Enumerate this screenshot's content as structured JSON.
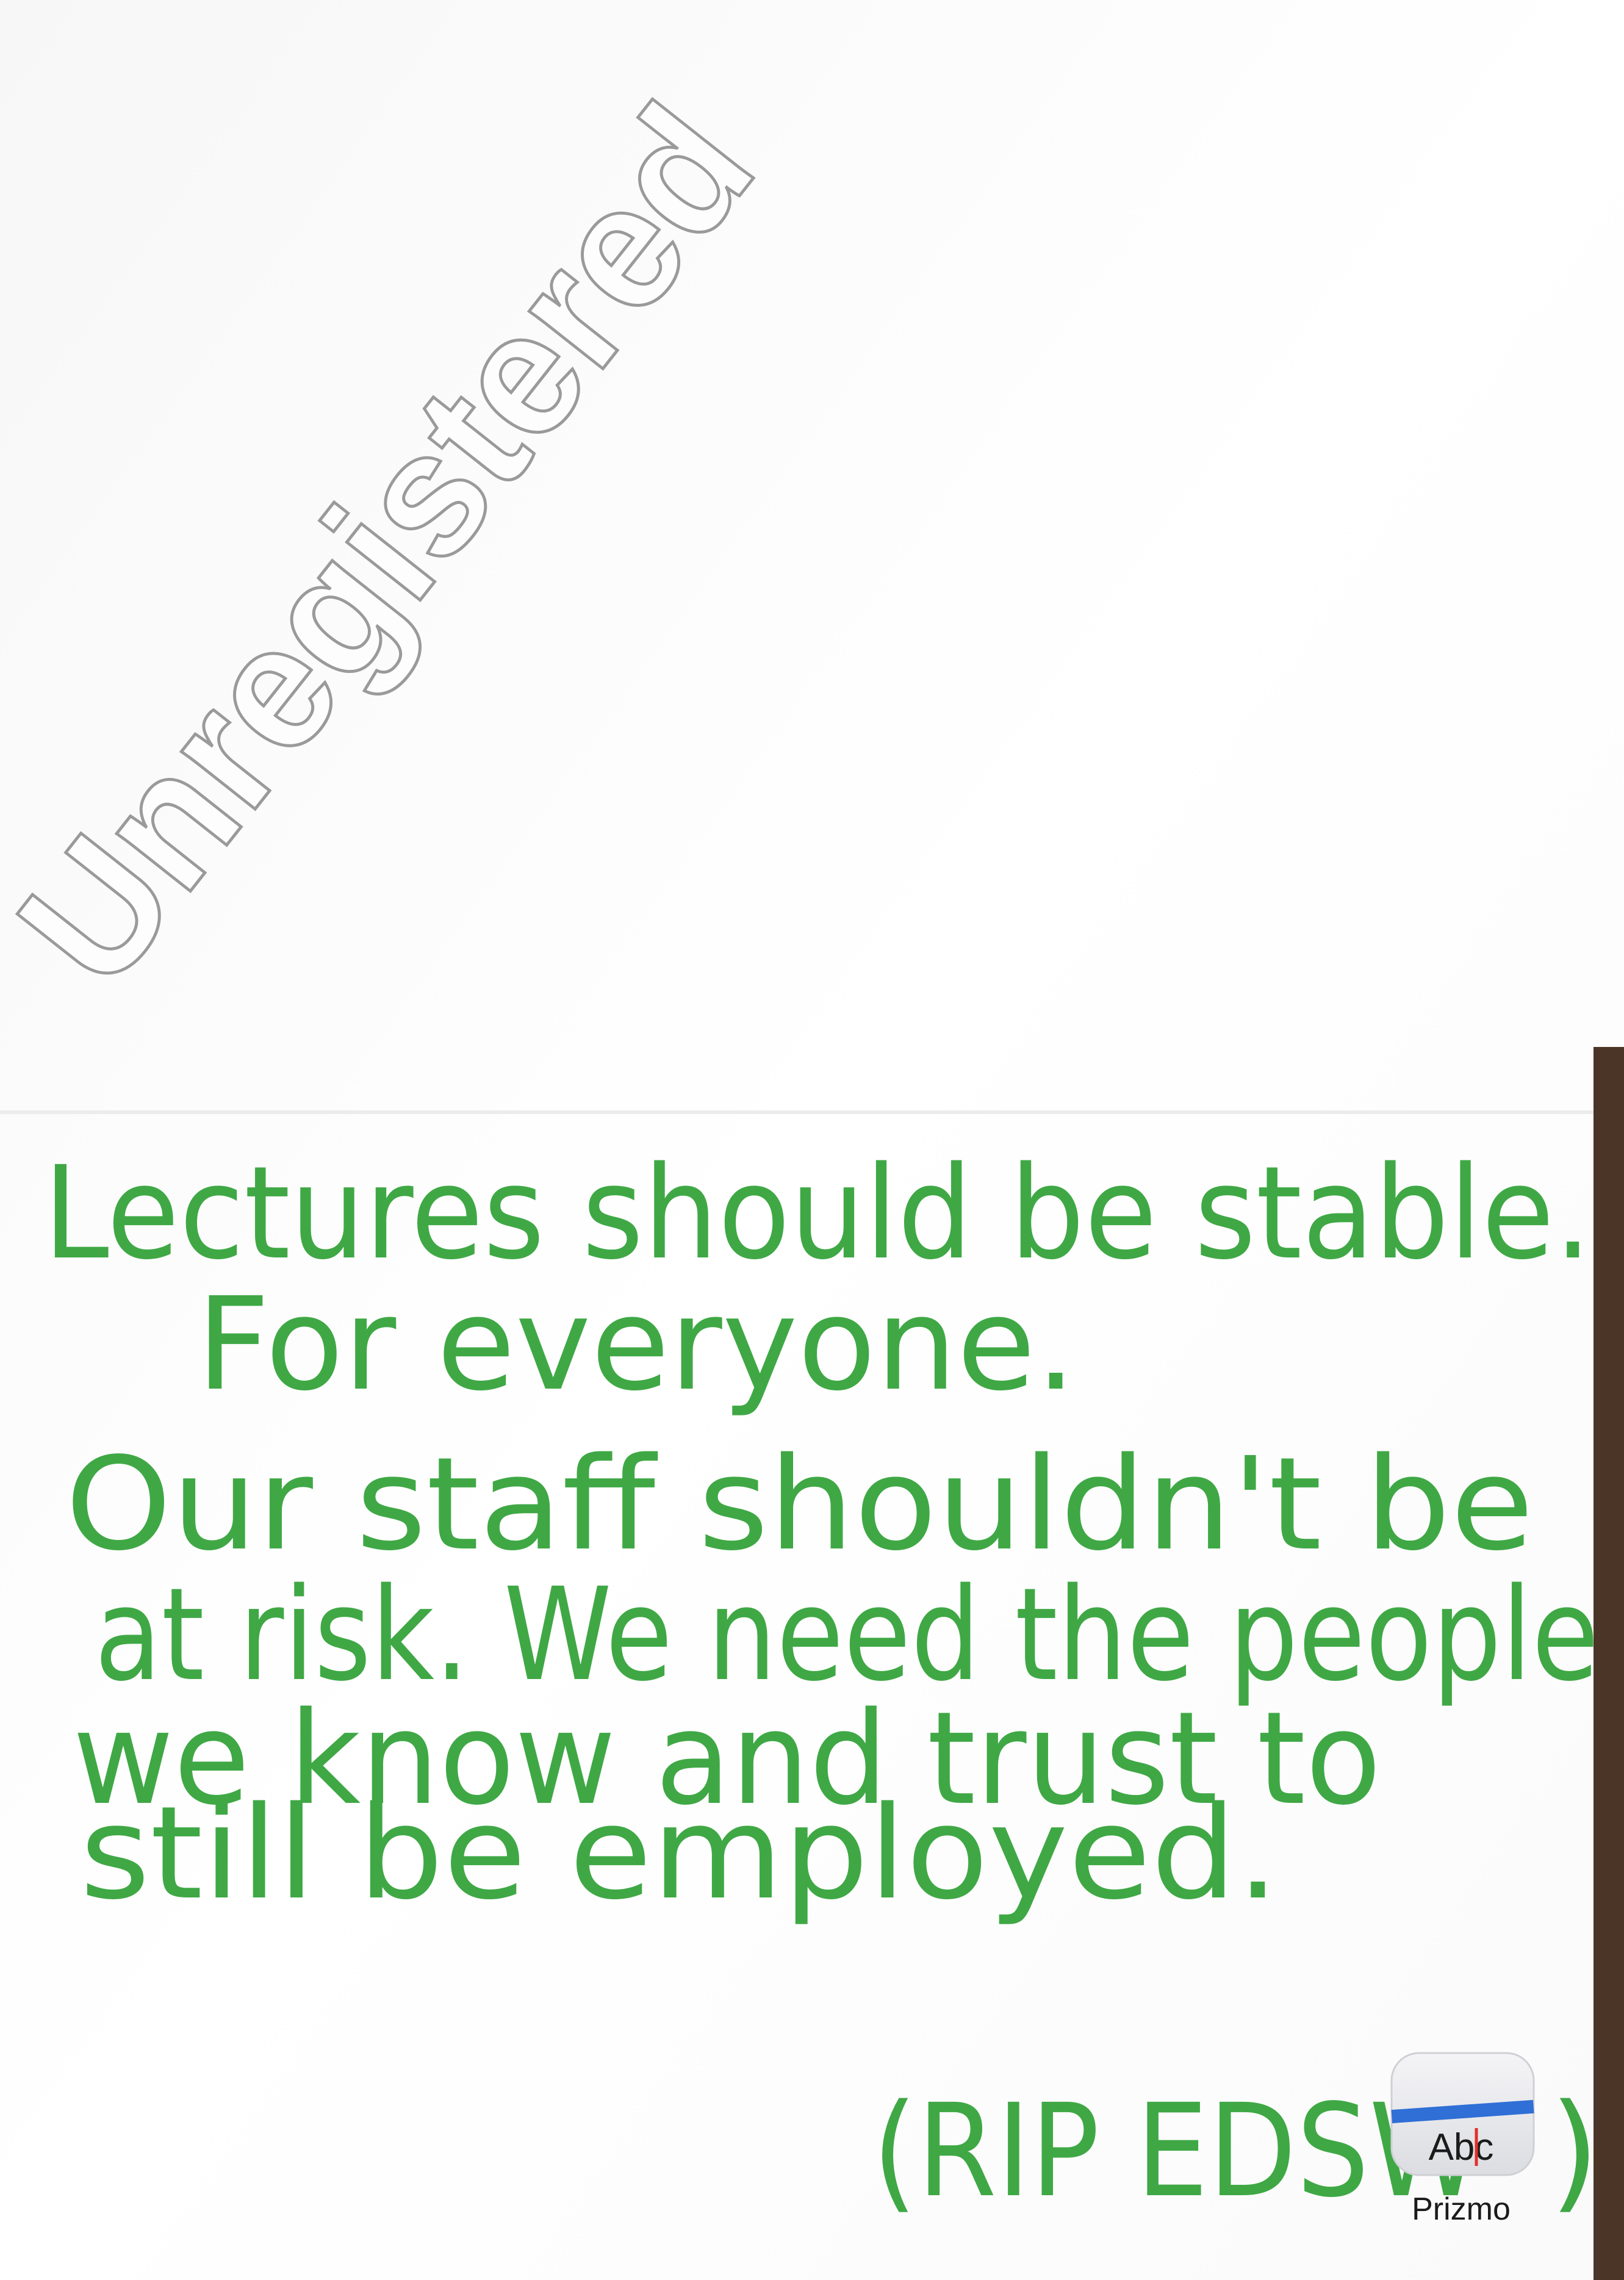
{
  "watermark": "Unregistered",
  "note": {
    "lines": [
      "Lectures should be stable.",
      "For everyone.",
      "Our staff shouldn't be",
      "at risk. We need the people",
      "we know and trust to",
      "still be employed."
    ],
    "signature": "(RIP EDSW",
    "signature_end": ")"
  },
  "app_badge": {
    "icon_text": "Abc",
    "name": "Prizmo"
  }
}
